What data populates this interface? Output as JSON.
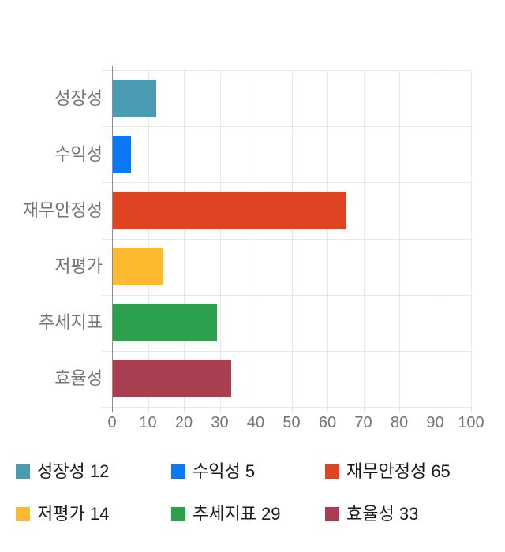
{
  "chart_data": {
    "type": "bar",
    "orientation": "horizontal",
    "title": "",
    "xlabel": "",
    "ylabel": "",
    "categories": [
      "성장성",
      "수익성",
      "재무안정성",
      "저평가",
      "추세지표",
      "효율성"
    ],
    "values": [
      12,
      5,
      65,
      14,
      29,
      33
    ],
    "colors": [
      "#4A9CB5",
      "#0B78F6",
      "#E04321",
      "#FDB92F",
      "#2CA04C",
      "#A93E50"
    ],
    "xlim": [
      0,
      100
    ],
    "xticks": [
      0,
      10,
      20,
      30,
      40,
      50,
      60,
      70,
      80,
      90,
      100
    ],
    "grid": true,
    "legend_position": "bottom",
    "legend": [
      {
        "label": "성장성 12",
        "color": "#4A9CB5"
      },
      {
        "label": "수익성 5",
        "color": "#0B78F6"
      },
      {
        "label": "재무안정성 65",
        "color": "#E04321"
      },
      {
        "label": "저평가 14",
        "color": "#FDB92F"
      },
      {
        "label": "추세지표 29",
        "color": "#2CA04C"
      },
      {
        "label": "효율성 33",
        "color": "#A93E50"
      }
    ]
  },
  "colors": {
    "background": "#ffffff",
    "gridline": "#e8e8e8",
    "axis_line": "#8d8d8d",
    "axis_text": "#757575",
    "category_text": "#757575",
    "legend_text": "#1a1a1a"
  }
}
